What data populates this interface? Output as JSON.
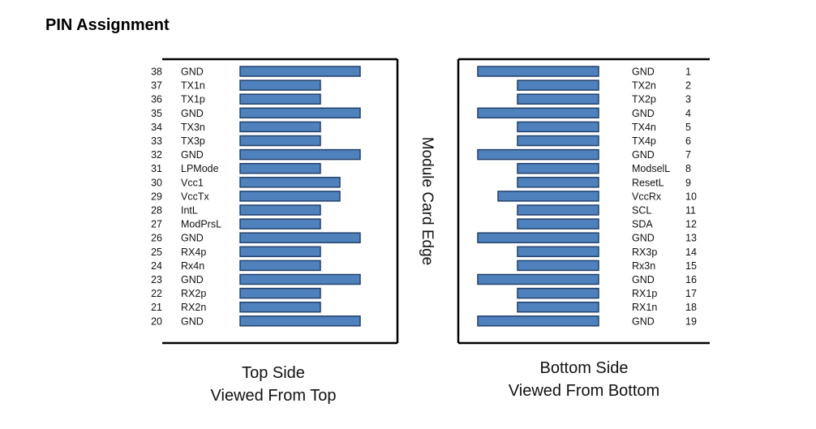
{
  "title": "PIN Assignment",
  "edge_label": "Module Card Edge",
  "colors": {
    "pad_fill": "#4f81bd",
    "pad_stroke": "#22416b",
    "frame": "#000000"
  },
  "top_side": {
    "caption_line1": "Top Side",
    "caption_line2": "Viewed From Top",
    "pins": [
      {
        "num": "38",
        "name": "GND",
        "length": "long"
      },
      {
        "num": "37",
        "name": "TX1n",
        "length": "short"
      },
      {
        "num": "36",
        "name": "TX1p",
        "length": "short"
      },
      {
        "num": "35",
        "name": "GND",
        "length": "long"
      },
      {
        "num": "34",
        "name": "TX3n",
        "length": "short"
      },
      {
        "num": "33",
        "name": "TX3p",
        "length": "short"
      },
      {
        "num": "32",
        "name": "GND",
        "length": "long"
      },
      {
        "num": "31",
        "name": "LPMode",
        "length": "short"
      },
      {
        "num": "30",
        "name": "Vcc1",
        "length": "medium"
      },
      {
        "num": "29",
        "name": "VccTx",
        "length": "medium"
      },
      {
        "num": "28",
        "name": "IntL",
        "length": "short"
      },
      {
        "num": "27",
        "name": "ModPrsL",
        "length": "short"
      },
      {
        "num": "26",
        "name": "GND",
        "length": "long"
      },
      {
        "num": "25",
        "name": "RX4p",
        "length": "short"
      },
      {
        "num": "24",
        "name": "Rx4n",
        "length": "short"
      },
      {
        "num": "23",
        "name": "GND",
        "length": "long"
      },
      {
        "num": "22",
        "name": "RX2p",
        "length": "short"
      },
      {
        "num": "21",
        "name": "RX2n",
        "length": "short"
      },
      {
        "num": "20",
        "name": "GND",
        "length": "long"
      }
    ]
  },
  "bottom_side": {
    "caption_line1": "Bottom Side",
    "caption_line2": "Viewed From Bottom",
    "pins": [
      {
        "num": "1",
        "name": "GND",
        "length": "long"
      },
      {
        "num": "2",
        "name": "TX2n",
        "length": "short"
      },
      {
        "num": "3",
        "name": "TX2p",
        "length": "short"
      },
      {
        "num": "4",
        "name": "GND",
        "length": "long"
      },
      {
        "num": "5",
        "name": "TX4n",
        "length": "short"
      },
      {
        "num": "6",
        "name": "TX4p",
        "length": "short"
      },
      {
        "num": "7",
        "name": "GND",
        "length": "long"
      },
      {
        "num": "8",
        "name": "ModselL",
        "length": "short"
      },
      {
        "num": "9",
        "name": "ResetL",
        "length": "short"
      },
      {
        "num": "10",
        "name": "VccRx",
        "length": "medium"
      },
      {
        "num": "11",
        "name": "SCL",
        "length": "short"
      },
      {
        "num": "12",
        "name": "SDA",
        "length": "short"
      },
      {
        "num": "13",
        "name": "GND",
        "length": "long"
      },
      {
        "num": "14",
        "name": "RX3p",
        "length": "short"
      },
      {
        "num": "15",
        "name": "Rx3n",
        "length": "short"
      },
      {
        "num": "16",
        "name": "GND",
        "length": "long"
      },
      {
        "num": "17",
        "name": "RX1p",
        "length": "short"
      },
      {
        "num": "18",
        "name": "RX1n",
        "length": "short"
      },
      {
        "num": "19",
        "name": "GND",
        "length": "long"
      }
    ]
  }
}
